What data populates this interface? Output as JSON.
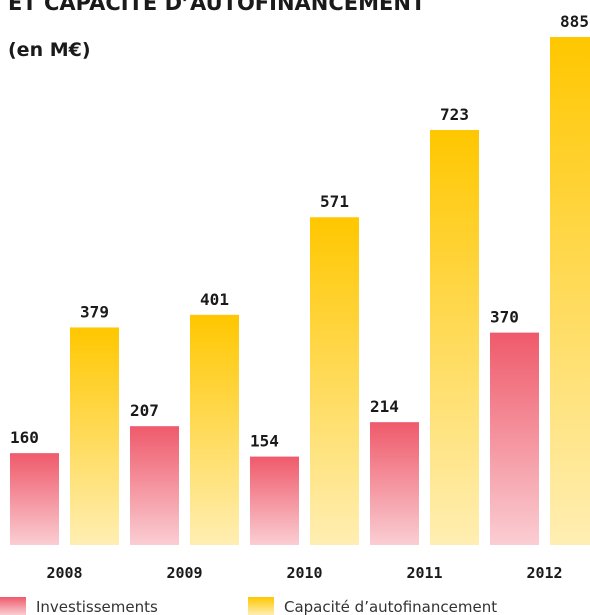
{
  "chart_data": {
    "type": "bar",
    "title": "ET CAPACITÉ D’AUTOFINANCEMENT",
    "subtitle": "(en M€)",
    "categories": [
      "2008",
      "2009",
      "2010",
      "2011",
      "2012"
    ],
    "series": [
      {
        "name": "Investissements",
        "color": "#ef5a6b",
        "values": [
          160,
          207,
          154,
          214,
          370
        ]
      },
      {
        "name": "Capacité d’autofinancement",
        "color": "#ffc700",
        "values": [
          379,
          401,
          571,
          723,
          885
        ]
      }
    ]
  }
}
